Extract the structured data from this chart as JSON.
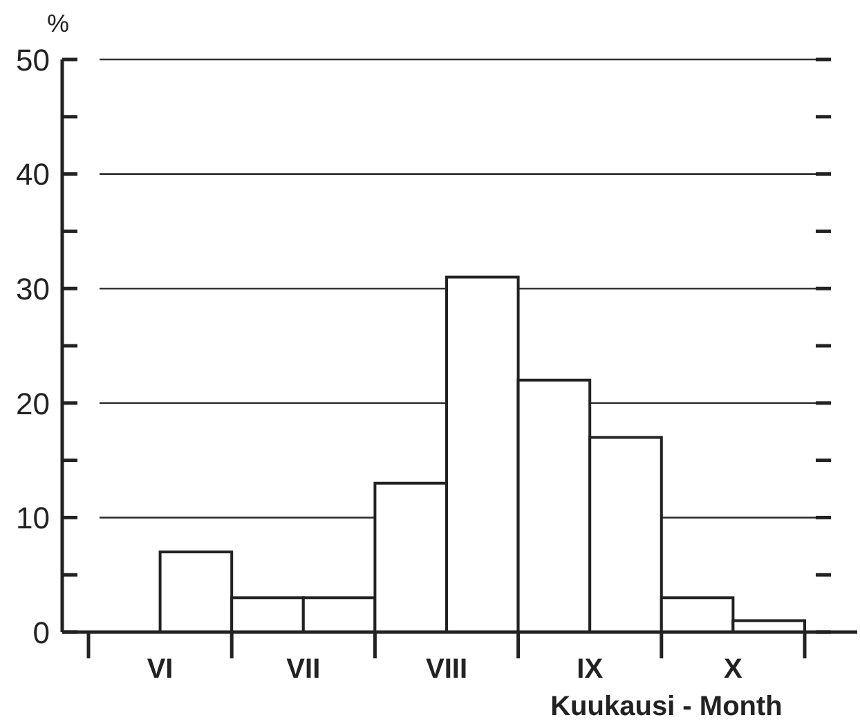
{
  "chart_data": {
    "type": "bar",
    "ylabel": "%",
    "xlabel": "Kuukausi - Month",
    "categories": [
      "VI",
      null,
      "VII",
      null,
      "VIII",
      null,
      "IX",
      null,
      "X",
      null
    ],
    "values": [
      0,
      7,
      3,
      3,
      13,
      31,
      22,
      17,
      3,
      1
    ],
    "color": "#ffffff",
    "ylim": [
      0,
      50
    ],
    "yticks": [
      0,
      {
        "value": 5,
        "label": null
      },
      10,
      {
        "value": 15,
        "label": null
      },
      20,
      {
        "value": 25,
        "label": null
      },
      30,
      {
        "value": 35,
        "label": null
      },
      40,
      {
        "value": 45,
        "label": null
      },
      50
    ],
    "grid": "y"
  }
}
